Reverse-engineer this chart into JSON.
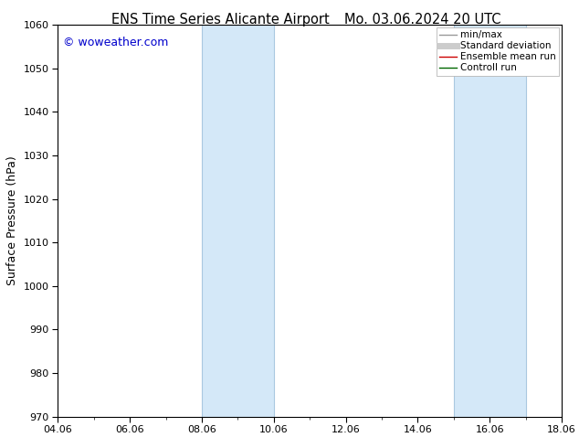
{
  "title_left": "ENS Time Series Alicante Airport",
  "title_right": "Mo. 03.06.2024 20 UTC",
  "ylabel": "Surface Pressure (hPa)",
  "ylim": [
    970,
    1060
  ],
  "yticks": [
    970,
    980,
    990,
    1000,
    1010,
    1020,
    1030,
    1040,
    1050,
    1060
  ],
  "xlim_num": [
    0,
    14
  ],
  "xtick_labels": [
    "04.06",
    "06.06",
    "08.06",
    "10.06",
    "12.06",
    "14.06",
    "16.06",
    "18.06"
  ],
  "xtick_positions": [
    0,
    2,
    4,
    6,
    8,
    10,
    12,
    14
  ],
  "shaded_bands": [
    {
      "xmin": 4.0,
      "xmax": 6.0
    },
    {
      "xmin": 11.0,
      "xmax": 13.0
    }
  ],
  "shade_color": "#d4e8f8",
  "band_left_color": "#aac8e0",
  "band_right_color": "#aac8e0",
  "watermark": "© woweather.com",
  "watermark_color": "#0000cc",
  "legend_entries": [
    {
      "label": "min/max",
      "color": "#999999",
      "lw": 1.0,
      "type": "line"
    },
    {
      "label": "Standard deviation",
      "color": "#cccccc",
      "lw": 5,
      "type": "line"
    },
    {
      "label": "Ensemble mean run",
      "color": "#cc0000",
      "lw": 1.0,
      "type": "line"
    },
    {
      "label": "Controll run",
      "color": "#006600",
      "lw": 1.0,
      "type": "line"
    }
  ],
  "background_color": "#ffffff",
  "title_fontsize": 10.5,
  "ylabel_fontsize": 9,
  "tick_fontsize": 8,
  "legend_fontsize": 7.5,
  "watermark_fontsize": 9
}
